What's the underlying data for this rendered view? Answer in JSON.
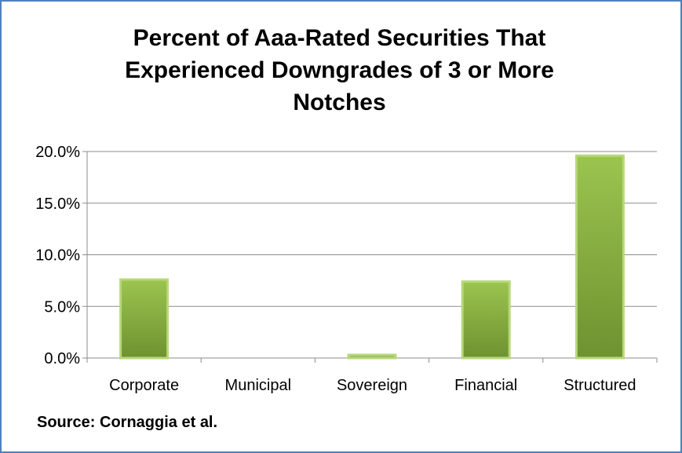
{
  "chart_data": {
    "type": "bar",
    "title_lines": [
      "Percent of Aaa-Rated Securities That",
      "Experienced Downgrades of 3 or More",
      "Notches"
    ],
    "categories": [
      "Corporate",
      "Municipal",
      "Sovereign",
      "Financial",
      "Structured"
    ],
    "values": [
      7.6,
      0.0,
      0.3,
      7.4,
      19.6
    ],
    "value_format": "percent_1dp",
    "ylim": [
      0,
      20
    ],
    "yticks": [
      0,
      5,
      10,
      15,
      20
    ],
    "ytick_labels": [
      "0.0%",
      "5.0%",
      "10.0%",
      "15.0%",
      "20.0%"
    ],
    "grid": true,
    "legend": "none",
    "bar_color_top": "#9bc44f",
    "bar_color_bottom": "#6e9230",
    "bar_edge_color": "#b7d77a",
    "grid_color": "#8c8c8c",
    "source_note": "Source: Cornaggia et al."
  },
  "colors": {
    "border": "#4f81bd",
    "background": "#ffffff"
  }
}
